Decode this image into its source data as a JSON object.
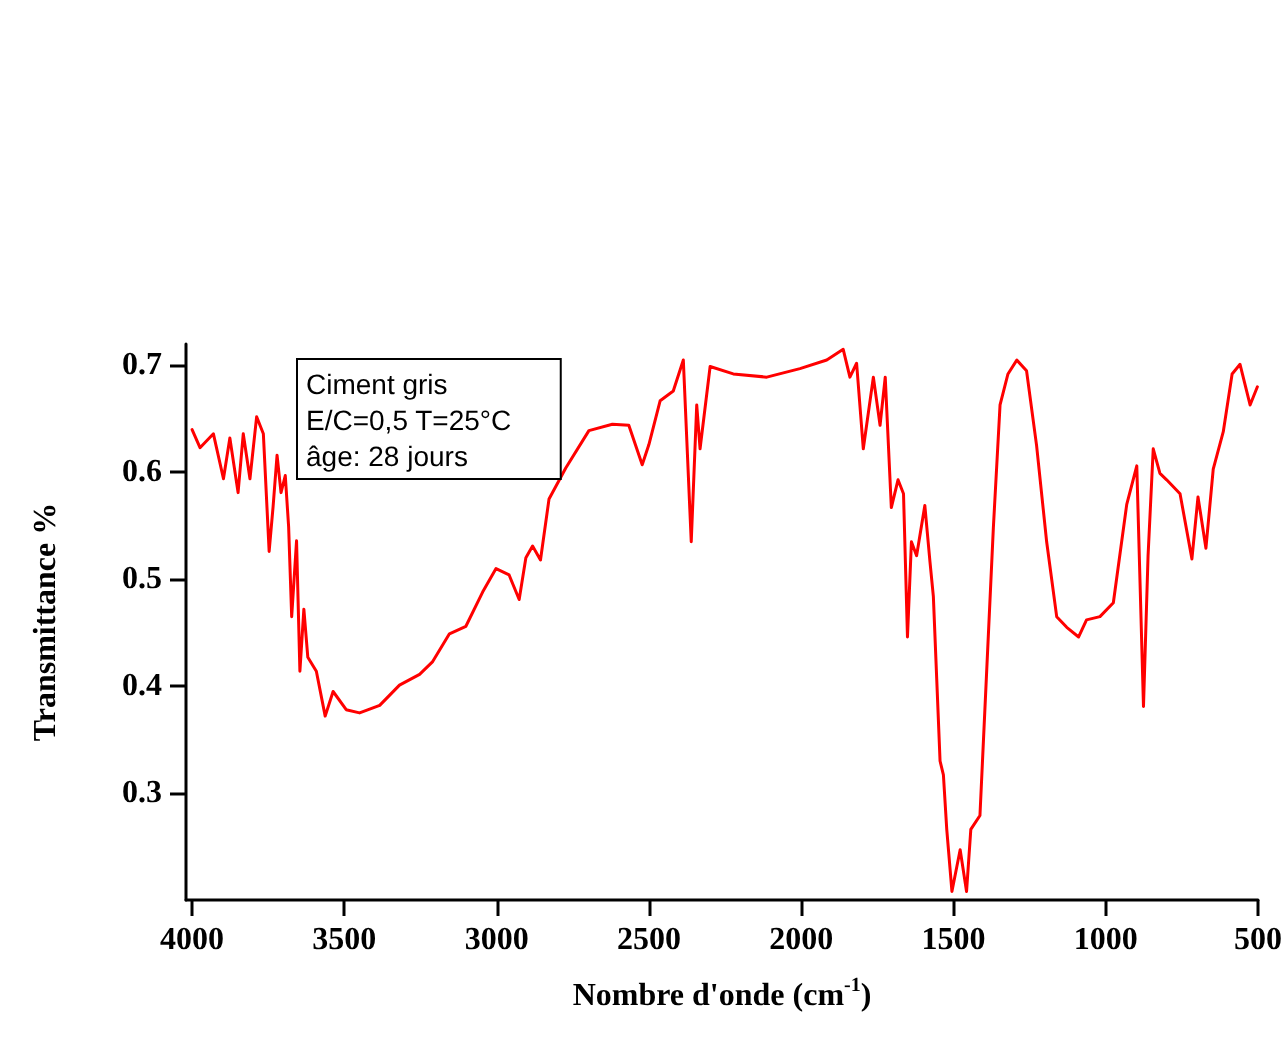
{
  "chart_data": {
    "type": "line",
    "xlabel": "Nombre d'onde (cm$^{-1}$)",
    "ylabel": "Transmittance %",
    "annotations": [
      "Ciment gris\nE/C=0,5 T=25°C\nâge: 28 jours"
    ],
    "x": [
      4000,
      3974,
      3930,
      3897,
      3876,
      3849,
      3832,
      3810,
      3788,
      3766,
      3747,
      3734,
      3721,
      3708,
      3694,
      3683,
      3673,
      3657,
      3646,
      3633,
      3620,
      3592,
      3563,
      3537,
      3494,
      3450,
      3384,
      3319,
      3253,
      3210,
      3155,
      3101,
      3046,
      3002,
      2959,
      2926,
      2904,
      2882,
      2856,
      2828,
      2773,
      2697,
      2620,
      2566,
      2522,
      2500,
      2463,
      2420,
      2387,
      2361,
      2343,
      2332,
      2299,
      2223,
      2113,
      2004,
      1916,
      1862,
      1840,
      1818,
      1796,
      1763,
      1741,
      1724,
      1704,
      1682,
      1664,
      1651,
      1638,
      1621,
      1594,
      1577,
      1566,
      1555,
      1544,
      1533,
      1522,
      1505,
      1478,
      1457,
      1443,
      1413,
      1369,
      1347,
      1321,
      1292,
      1260,
      1227,
      1194,
      1161,
      1128,
      1089,
      1063,
      1019,
      975,
      931,
      898,
      876,
      861,
      844,
      822,
      800,
      756,
      717,
      697,
      671,
      647,
      614,
      585,
      559,
      526,
      502
    ],
    "series": [
      {
        "color": "#ff0000",
        "values": [
          0.64,
          0.623,
          0.636,
          0.594,
          0.632,
          0.581,
          0.636,
          0.594,
          0.652,
          0.636,
          0.526,
          0.568,
          0.616,
          0.581,
          0.597,
          0.549,
          0.465,
          0.536,
          0.414,
          0.472,
          0.427,
          0.414,
          0.372,
          0.395,
          0.378,
          0.375,
          0.382,
          0.401,
          0.411,
          0.423,
          0.449,
          0.456,
          0.488,
          0.51,
          0.504,
          0.481,
          0.52,
          0.531,
          0.518,
          0.575,
          0.604,
          0.639,
          0.645,
          0.644,
          0.607,
          0.626,
          0.667,
          0.676,
          0.705,
          0.535,
          0.663,
          0.622,
          0.699,
          0.692,
          0.689,
          0.697,
          0.705,
          0.715,
          0.689,
          0.702,
          0.622,
          0.689,
          0.644,
          0.689,
          0.567,
          0.593,
          0.58,
          0.446,
          0.535,
          0.522,
          0.569,
          0.516,
          0.484,
          0.407,
          0.33,
          0.317,
          0.266,
          0.208,
          0.247,
          0.208,
          0.266,
          0.279,
          0.548,
          0.663,
          0.692,
          0.705,
          0.695,
          0.625,
          0.535,
          0.465,
          0.455,
          0.446,
          0.462,
          0.465,
          0.478,
          0.57,
          0.606,
          0.381,
          0.522,
          0.622,
          0.599,
          0.593,
          0.58,
          0.519,
          0.577,
          0.529,
          0.603,
          0.638,
          0.692,
          0.701,
          0.663,
          0.68
        ]
      }
    ],
    "xlim": [
      4020,
      500
    ],
    "xticks": [
      4000,
      3500,
      3000,
      2500,
      2000,
      1500,
      1000,
      500
    ],
    "ylim": [
      0.2,
      0.72
    ],
    "yticks": [
      0.3,
      0.4,
      0.5,
      0.6,
      0.7
    ],
    "marker": "none",
    "line_style": "solid"
  }
}
